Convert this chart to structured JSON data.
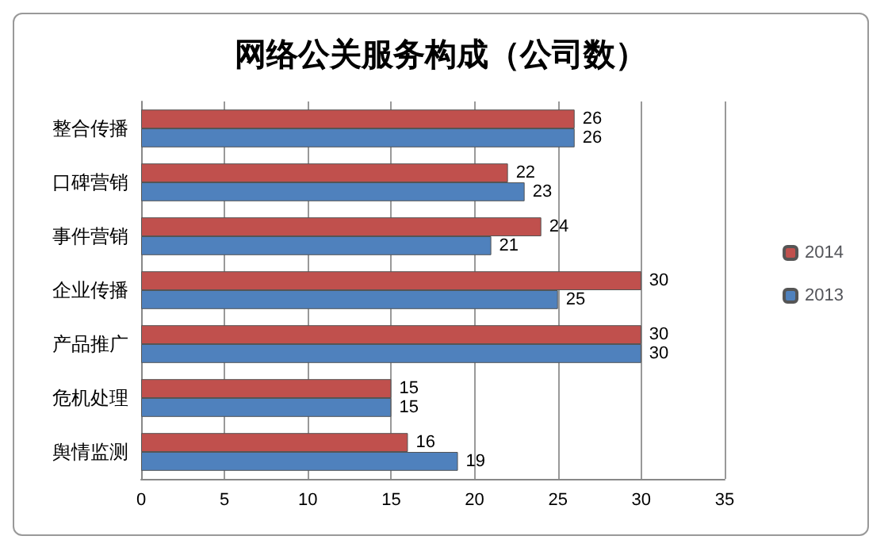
{
  "chart_data": {
    "type": "bar",
    "title": "网络公关服务构成（公司数）",
    "orientation": "horizontal",
    "categories": [
      "整合传播",
      "口碑营销",
      "事件营销",
      "企业传播",
      "产品推广",
      "危机处理",
      "舆情监测"
    ],
    "series": [
      {
        "name": "2014",
        "color": "#c0504d",
        "values": [
          26,
          22,
          24,
          30,
          30,
          15,
          16
        ]
      },
      {
        "name": "2013",
        "color": "#4f81bd",
        "values": [
          26,
          23,
          21,
          25,
          30,
          15,
          19
        ]
      }
    ],
    "xlim": [
      0,
      35
    ],
    "xticks": [
      0,
      5,
      10,
      15,
      20,
      25,
      30,
      35
    ],
    "grid": "x",
    "legend": "right",
    "data_labels": true
  }
}
